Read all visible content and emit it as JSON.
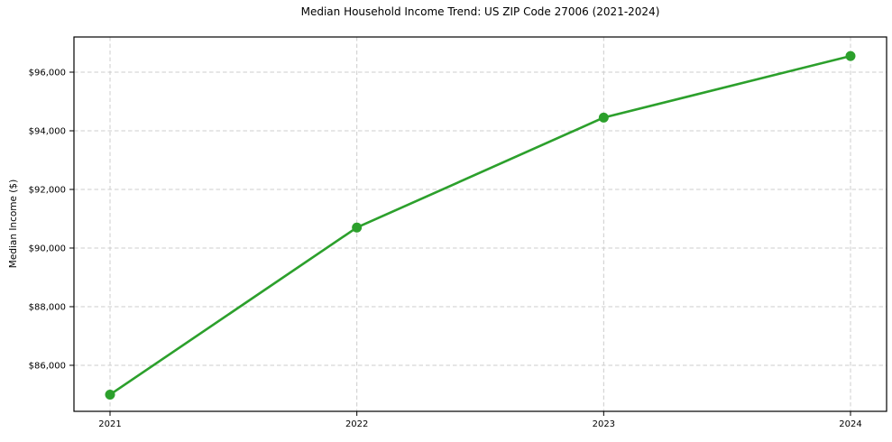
{
  "chart_data": {
    "type": "line",
    "title": "Median Household Income Trend: US ZIP Code 27006 (2021-2024)",
    "xlabel": "",
    "ylabel": "Median Income ($)",
    "categories": [
      "2021",
      "2022",
      "2023",
      "2024"
    ],
    "series": [
      {
        "name": "median-household-income",
        "values": [
          85000,
          90700,
          94450,
          96550
        ],
        "color": "#2ca02c"
      }
    ],
    "ylim": [
      84430,
      97200
    ],
    "yticks": {
      "values": [
        86000,
        88000,
        90000,
        92000,
        94000,
        96000
      ],
      "labels": [
        "$86,000",
        "$88,000",
        "$90,000",
        "$92,000",
        "$94,000",
        "$96,000"
      ]
    },
    "grid": "both, dashed, on",
    "legend": "none",
    "colors": {
      "line": "#2ca02c",
      "marker": "#2ca02c",
      "grid": "#cccccc",
      "spine": "#000000",
      "text": "#000000",
      "background": "#ffffff"
    }
  }
}
